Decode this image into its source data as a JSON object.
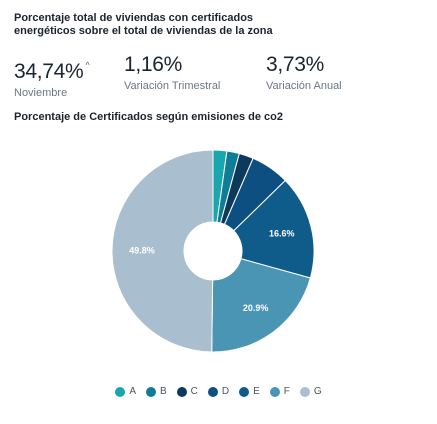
{
  "header": {
    "title": "Porcentaje total de viviendas con certificados energéticos sobre el total de viviendas de la zona"
  },
  "kpis": [
    {
      "value": "34,74%",
      "label": "Noviembre",
      "trend_icon": "caret-up-icon",
      "trend_glyph": "^"
    },
    {
      "value": "1,16%",
      "label": "Variación Trimestral"
    },
    {
      "value": "3,73%",
      "label": "Variación Anual"
    }
  ],
  "chart_data": {
    "type": "pie",
    "title": "Porcentaje de Certificados según emisiones de co2",
    "donut": true,
    "categories": [
      "A",
      "B",
      "C",
      "D",
      "E",
      "F",
      "G"
    ],
    "values": [
      2.2,
      2.0,
      2.3,
      6.2,
      16.6,
      20.9,
      49.8
    ],
    "colors": [
      "#1aa6ad",
      "#0e7d95",
      "#0d3a5c",
      "#0d4f80",
      "#0f5c8a",
      "#4a95b4",
      "#a9bfcf"
    ],
    "slice_labels": [
      "",
      "",
      "",
      "",
      "16.6%",
      "20.9%",
      "49.8%"
    ],
    "legend_position": "bottom"
  }
}
